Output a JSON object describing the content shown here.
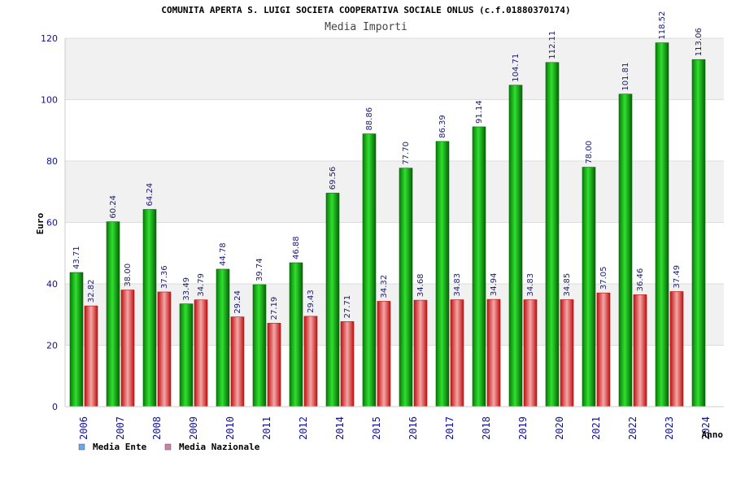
{
  "chart_data": {
    "type": "bar",
    "title": "COMUNITA APERTA S. LUIGI SOCIETA COOPERATIVA SOCIALE ONLUS (c.f.01880370174)",
    "subtitle": "Media Importi",
    "xlabel": "Anno",
    "ylabel": "Euro",
    "ylim": [
      0,
      120
    ],
    "yticks": [
      0,
      20,
      40,
      60,
      80,
      100,
      120
    ],
    "grid": true,
    "legend_position": "bottom-left",
    "categories": [
      "2006",
      "2007",
      "2008",
      "2009",
      "2010",
      "2011",
      "2012",
      "2014",
      "2015",
      "2016",
      "2017",
      "2018",
      "2019",
      "2020",
      "2021",
      "2022",
      "2023",
      "2024"
    ],
    "series": [
      {
        "name": "Media Ente",
        "legend_color": "#6aa6e8",
        "bar_color": "#1fbf1f",
        "values": [
          43.71,
          60.24,
          64.24,
          33.49,
          44.78,
          39.74,
          46.88,
          69.56,
          88.86,
          77.7,
          86.39,
          91.14,
          104.71,
          112.11,
          78.0,
          101.81,
          118.52,
          113.06
        ],
        "labels": [
          "43.71",
          "60.24",
          "64.24",
          "33.49",
          "44.78",
          "39.74",
          "46.88",
          "69.56",
          "88.86",
          "77.70",
          "86.39",
          "91.14",
          "104.71",
          "112.11",
          "78.00",
          "101.81",
          "118.52",
          "113.06"
        ]
      },
      {
        "name": "Media Nazionale",
        "legend_color": "#d080a8",
        "bar_color": "#e82020",
        "values": [
          32.82,
          38.0,
          37.36,
          34.79,
          29.24,
          27.19,
          29.43,
          27.71,
          34.32,
          34.68,
          34.83,
          34.94,
          34.83,
          34.85,
          37.05,
          36.46,
          37.49,
          null
        ],
        "labels": [
          "32.82",
          "38.00",
          "37.36",
          "34.79",
          "29.24",
          "27.19",
          "29.43",
          "27.71",
          "34.32",
          "34.68",
          "34.83",
          "34.94",
          "34.83",
          "34.85",
          "37.05",
          "36.46",
          "37.49",
          ""
        ]
      }
    ]
  }
}
